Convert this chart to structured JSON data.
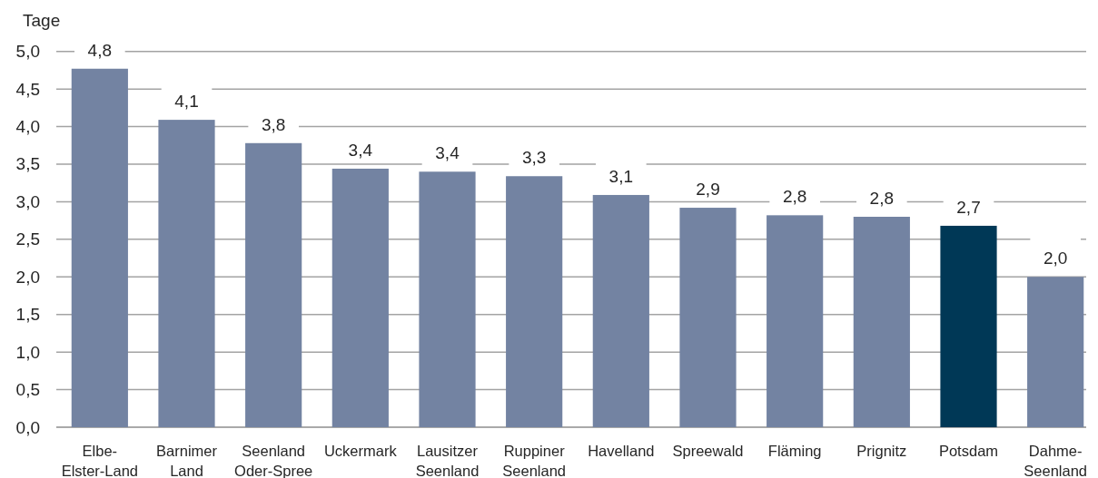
{
  "chart_data": {
    "type": "bar",
    "ylabel": "Tage",
    "categories": [
      "Elbe-\nElster-Land",
      "Barnimer\nLand",
      "Seenland\nOder-Spree",
      "Uckermark",
      "Lausitzer\nSeenland",
      "Ruppiner\nSeenland",
      "Havelland",
      "Spreewald",
      "Fläming",
      "Prignitz",
      "Potsdam",
      "Dahme-\nSeenland"
    ],
    "values": [
      4.77,
      4.09,
      3.78,
      3.44,
      3.4,
      3.34,
      3.09,
      2.92,
      2.82,
      2.8,
      2.68,
      2.0
    ],
    "value_labels": [
      "4,8",
      "4,1",
      "3,8",
      "3,4",
      "3,4",
      "3,3",
      "3,1",
      "2,9",
      "2,8",
      "2,8",
      "2,7",
      "2,0"
    ],
    "colors": [
      "#7383a2",
      "#7383a2",
      "#7383a2",
      "#7383a2",
      "#7383a2",
      "#7383a2",
      "#7383a2",
      "#7383a2",
      "#7383a2",
      "#7383a2",
      "#003856",
      "#7383a2"
    ],
    "ylim": [
      0,
      5
    ],
    "yticks": [
      {
        "value": 0,
        "label": "0,0"
      },
      {
        "value": 0.5,
        "label": "0,5"
      },
      {
        "value": 1,
        "label": "1,0"
      },
      {
        "value": 1.5,
        "label": "1,5"
      },
      {
        "value": 2,
        "label": "2,0"
      },
      {
        "value": 2.5,
        "label": "2,5"
      },
      {
        "value": 3,
        "label": "3,0"
      },
      {
        "value": 3.5,
        "label": "3,5"
      },
      {
        "value": 4,
        "label": "4,0"
      },
      {
        "value": 4.5,
        "label": "4,5"
      },
      {
        "value": 5,
        "label": "5,0"
      }
    ],
    "grid": "y"
  }
}
